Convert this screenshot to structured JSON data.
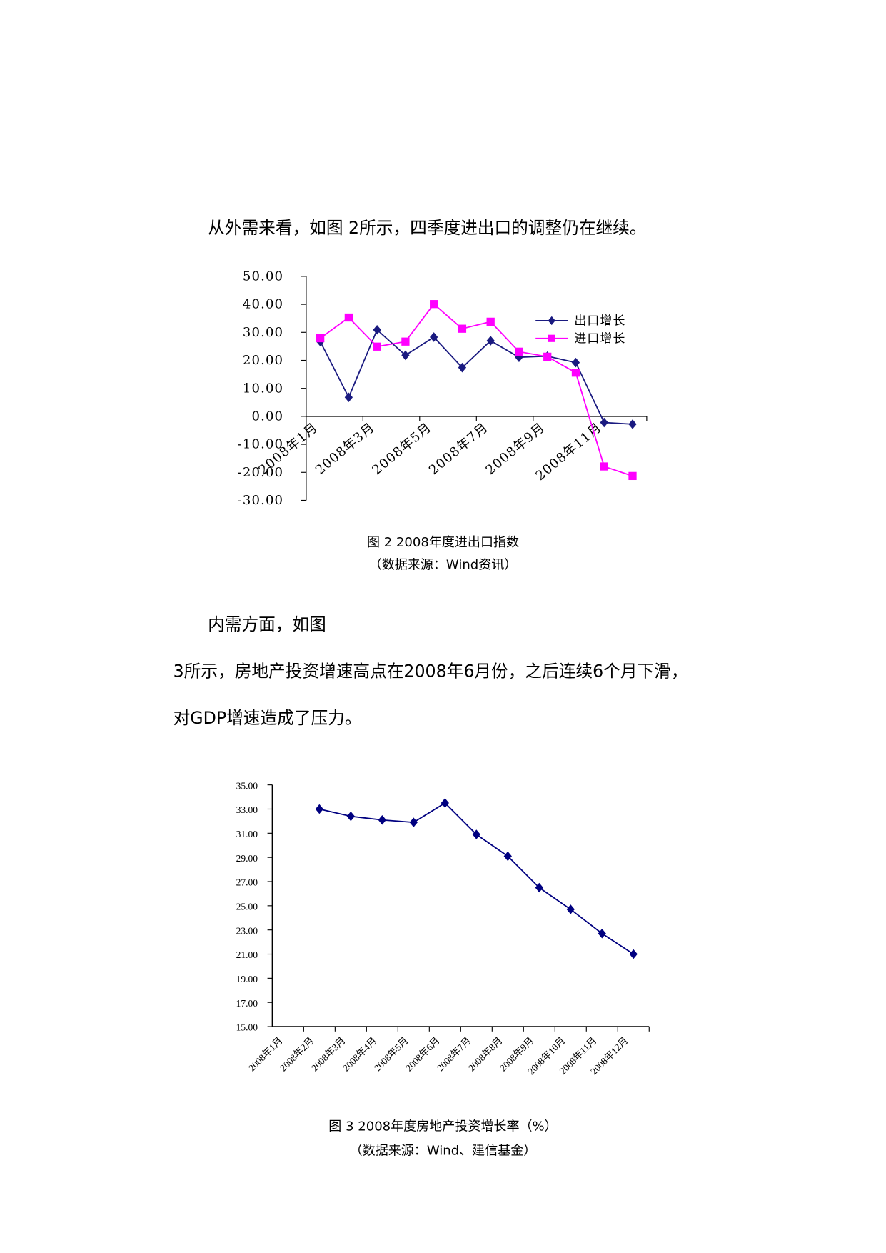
{
  "paragraphs": [
    {
      "lines": [
        "从外需来看，如图 2所示，四季度进出口的调整仍在继续。"
      ]
    },
    {
      "lines": [
        "内需方面，如图",
        "3所示，房地产投资增速高点在2008年6月份，之后连续6个月下滑，",
        "对GDP增速造成了压力。"
      ]
    }
  ],
  "chart_data": [
    {
      "type": "line",
      "caption": "图 2  2008年度进出口指数",
      "source": "（数据来源：Wind资讯）",
      "categories": [
        "2008年1月",
        null,
        "2008年3月",
        null,
        "2008年5月",
        null,
        "2008年7月",
        null,
        "2008年9月",
        null,
        "2008年11月",
        null
      ],
      "series": [
        {
          "name": "出口增长",
          "color": "#1a1a80",
          "marker": "diamond",
          "values": [
            26.7,
            6.8,
            30.9,
            21.8,
            28.3,
            17.4,
            27.0,
            21.1,
            21.5,
            19.2,
            -2.2,
            -2.8
          ]
        },
        {
          "name": "进口增长",
          "color": "#ff00ff",
          "marker": "square",
          "values": [
            27.9,
            35.3,
            24.9,
            26.7,
            40.1,
            31.3,
            33.8,
            23.1,
            21.3,
            15.6,
            -17.9,
            -21.3
          ]
        }
      ],
      "ylim": [
        -30,
        50
      ],
      "yticks": [
        {
          "value": -30,
          "label": "-30.00"
        },
        {
          "value": -20,
          "label": "-20.00"
        },
        {
          "value": -10,
          "label": "-10.00"
        },
        {
          "value": 0,
          "label": "0.00"
        },
        {
          "value": 10,
          "label": "10.00"
        },
        {
          "value": 20,
          "label": "20.00"
        },
        {
          "value": 30,
          "label": "30.00"
        },
        {
          "value": 40,
          "label": "40.00"
        },
        {
          "value": 50,
          "label": "50.00"
        }
      ],
      "legend": "upper right"
    },
    {
      "type": "line",
      "caption": "图 3  2008年度房地产投资增长率（%）",
      "source": "（数据来源：Wind、建信基金）",
      "categories": [
        "2008年1月",
        "2008年2月",
        "2008年3月",
        "2008年4月",
        "2008年5月",
        "2008年6月",
        "2008年7月",
        "2008年8月",
        "2008年9月",
        "2008年10月",
        "2008年11月",
        "2008年12月"
      ],
      "series": [
        {
          "color": "#000080",
          "marker": "diamond",
          "values": [
            null,
            33.0,
            32.4,
            32.1,
            31.9,
            33.5,
            30.9,
            29.1,
            26.5,
            24.7,
            22.7,
            21.0
          ]
        }
      ],
      "ylim": [
        15,
        35
      ],
      "yticks": [
        {
          "value": 15,
          "label": "15.00"
        },
        {
          "value": 17,
          "label": "17.00"
        },
        {
          "value": 19,
          "label": "19.00"
        },
        {
          "value": 21,
          "label": "21.00"
        },
        {
          "value": 23,
          "label": "23.00"
        },
        {
          "value": 25,
          "label": "25.00"
        },
        {
          "value": 27,
          "label": "27.00"
        },
        {
          "value": 29,
          "label": "29.00"
        },
        {
          "value": 31,
          "label": "31.00"
        },
        {
          "value": 33,
          "label": "33.00"
        },
        {
          "value": 35,
          "label": "35.00"
        }
      ]
    }
  ]
}
